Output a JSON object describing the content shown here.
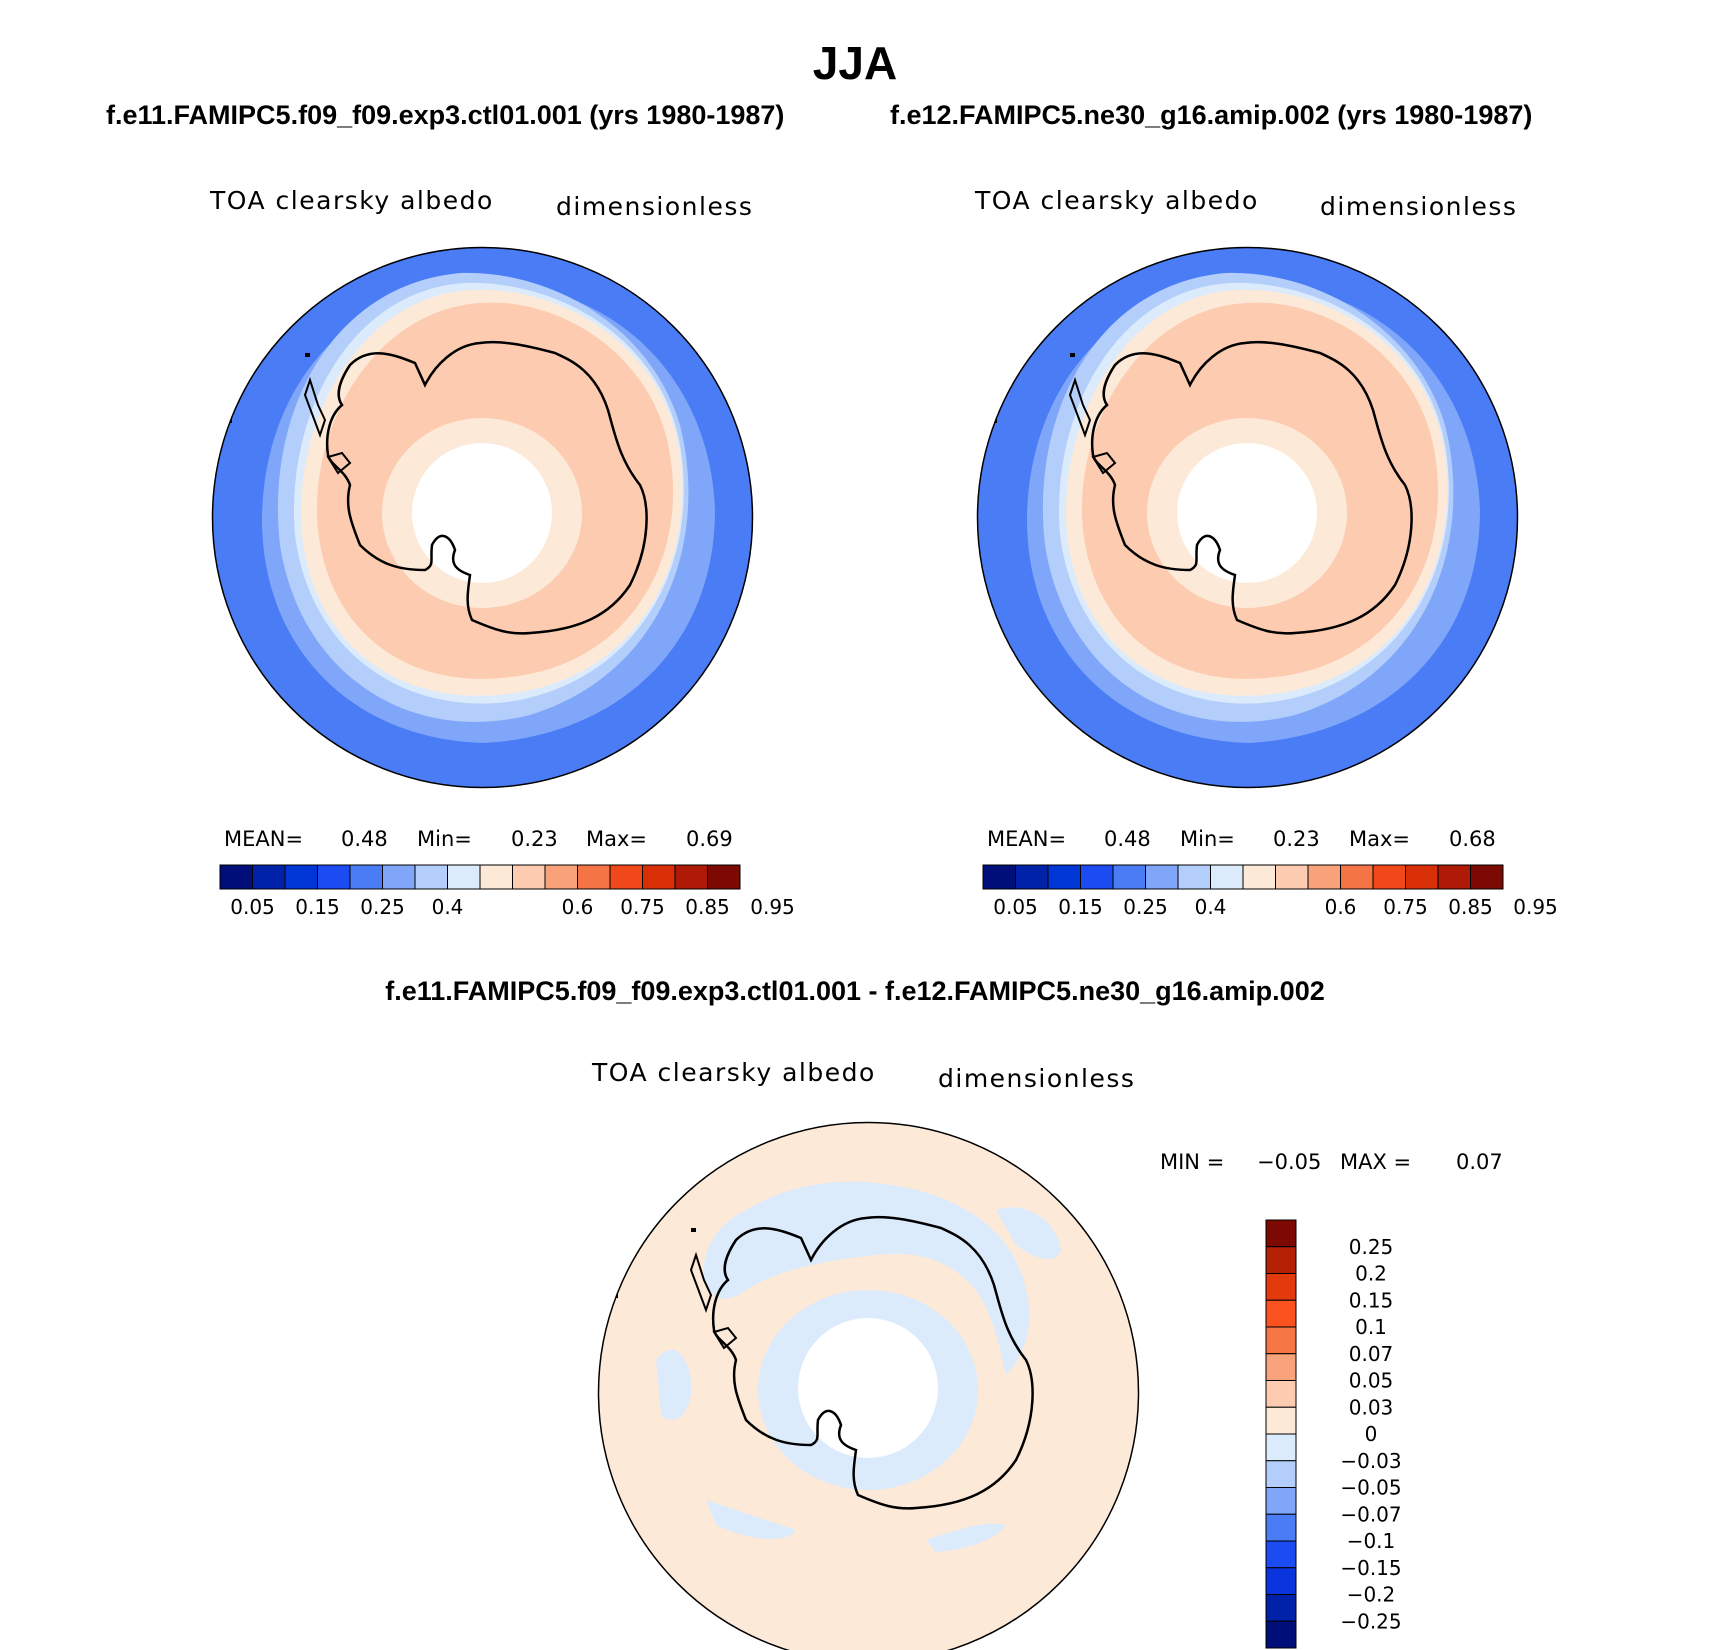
{
  "figure": {
    "title": "JJA",
    "case1_title": "f.e11.FAMIPC5.f09_f09.exp3.ctl01.001 (yrs 1980-1987)",
    "case2_title": "f.e12.FAMIPC5.ne30_g16.amip.002 (yrs 1980-1987)",
    "diff_title": "f.e11.FAMIPC5.f09_f09.exp3.ctl01.001 - f.e12.FAMIPC5.ne30_g16.amip.002"
  },
  "panels": [
    {
      "variable": "TOA clearsky albedo",
      "units": "dimensionless",
      "mean_label": "MEAN=",
      "mean": "0.48",
      "min_label": "Min=",
      "min": "0.23",
      "max_label": "Max=",
      "max": "0.69"
    },
    {
      "variable": "TOA clearsky albedo",
      "units": "dimensionless",
      "mean_label": "MEAN=",
      "mean": "0.48",
      "min_label": "Min=",
      "min": "0.23",
      "max_label": "Max=",
      "max": "0.68"
    }
  ],
  "diff_panel": {
    "variable": "TOA clearsky albedo",
    "units": "dimensionless",
    "min_label": "MIN =",
    "min": "−0.05",
    "max_label": "MAX =",
    "max": "0.07"
  },
  "colorbar_abs": {
    "colors": [
      "#000e7a",
      "#0022a8",
      "#0036d6",
      "#1c4bf2",
      "#4a7cf5",
      "#7fa6f8",
      "#b3cefb",
      "#dbebfc",
      "#fde9d8",
      "#fccbb0",
      "#f9a27a",
      "#f57445",
      "#f0481a",
      "#d82f07",
      "#ae1a05",
      "#7c0a02"
    ],
    "labels": [
      "0.05",
      "0.15",
      "0.25",
      "0.4",
      "0.6",
      "0.75",
      "0.85",
      "0.95"
    ]
  },
  "colorbar_diff": {
    "colors": [
      "#7c0a02",
      "#b52105",
      "#e23a0c",
      "#f9521f",
      "#f67645",
      "#f8a37c",
      "#fccbb0",
      "#fde9d8",
      "#dbebfc",
      "#b3cefb",
      "#7fa6f8",
      "#4a7cf5",
      "#1c4bf2",
      "#0a34dd",
      "#0022a8",
      "#000e7a"
    ],
    "labels": [
      "0.25",
      "0.2",
      "0.15",
      "0.1",
      "0.07",
      "0.05",
      "0.03",
      "0",
      "−0.03",
      "−0.05",
      "−0.07",
      "−0.1",
      "−0.15",
      "−0.2",
      "−0.25"
    ]
  }
}
